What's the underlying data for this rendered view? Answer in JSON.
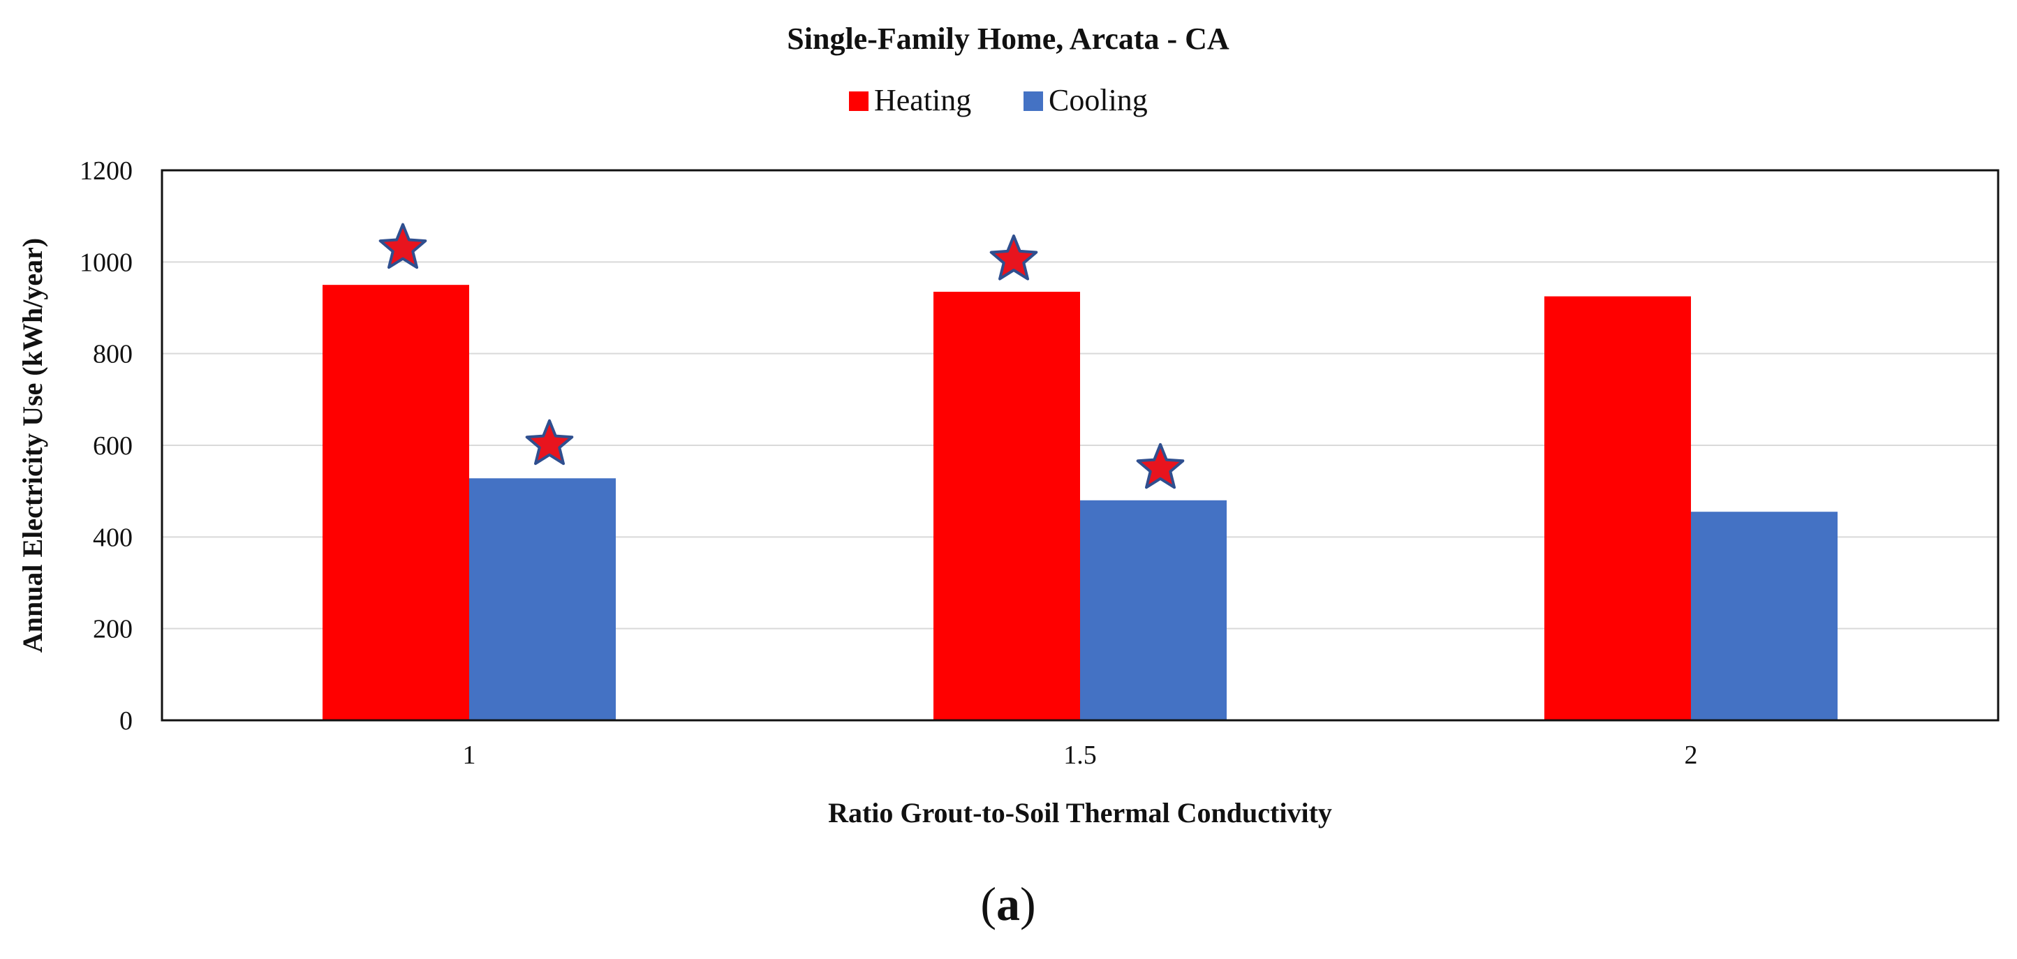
{
  "chart_data": {
    "type": "bar",
    "title": "Single-Family Home, Arcata  - CA",
    "xlabel": "Ratio Grout-to-Soil Thermal Conductivity",
    "ylabel": "Annual Electricity Use (kWh/year)",
    "ylim": [
      0,
      1200
    ],
    "yticks": [
      0,
      200,
      400,
      600,
      800,
      1000,
      1200
    ],
    "categories": [
      "1",
      "1.5",
      "2"
    ],
    "series": [
      {
        "name": "Heating",
        "color": "#ff0000",
        "values": [
          950,
          935,
          925
        ]
      },
      {
        "name": "Cooling",
        "color": "#4472c4",
        "values": [
          528,
          480,
          455
        ]
      }
    ],
    "annotations": [
      {
        "marker": "star",
        "series": "Heating",
        "category": "1",
        "y": 1030
      },
      {
        "marker": "star",
        "series": "Cooling",
        "category": "1",
        "y": 602
      },
      {
        "marker": "star",
        "series": "Heating",
        "category": "1.5",
        "y": 1005
      },
      {
        "marker": "star",
        "series": "Cooling",
        "category": "1.5",
        "y": 550
      }
    ],
    "grid": true,
    "legend_position": "top-center",
    "star_fill": "#e8141e",
    "star_stroke": "#2f4f8f"
  },
  "caption": "(a)",
  "caption_letter": "a"
}
